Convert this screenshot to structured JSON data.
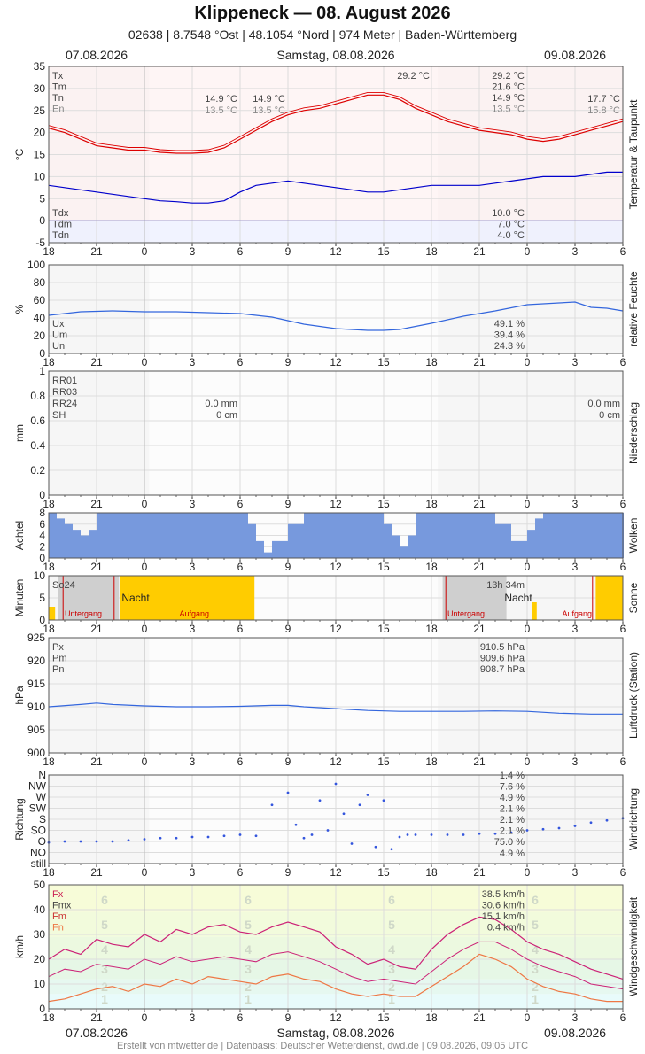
{
  "header": {
    "title": "Klippeneck  —  08. August 2026",
    "subtitle": "02638  |  8.7548 °Ost  |  48.1054 °Nord  |  974 Meter  |  Baden-Württemberg",
    "date_left": "07.08.2026",
    "date_center": "Samstag, 08.08.2026",
    "date_right": "09.08.2026"
  },
  "footer": "Erstellt von mtwetter.de | Datenbasis: Deutscher Wetterdienst, dwd.de | 09.08.2026, 09:05 UTC",
  "colors": {
    "temp": "#dd0000",
    "dew": "#0000cc",
    "humidity": "#3366dd",
    "cloud": "#7799dd",
    "sun": "#ffcc00",
    "pressure": "#3366dd",
    "gust": "#cc2277",
    "wind_mean": "#ee7744"
  },
  "chart_data": [
    {
      "id": "temperature",
      "type": "line",
      "ylabel": "°C",
      "side_label": "Temperatur & Taupunkt",
      "ylim": [
        -5,
        35
      ],
      "yticks": [
        -5,
        0,
        5,
        10,
        15,
        20,
        25,
        30,
        35
      ],
      "xlim": [
        18,
        54
      ],
      "xticks": [
        "18",
        "21",
        "0",
        "3",
        "6",
        "9",
        "12",
        "15",
        "18",
        "21",
        "0",
        "3",
        "6"
      ],
      "legend_top": [
        "Tx",
        "Tm",
        "Tn",
        "En"
      ],
      "legend_bottom": [
        "Tdx",
        "Tdm",
        "Tdn"
      ],
      "annotations": {
        "mid_tn": "14.9 °C",
        "mid_en": "13.5 °C",
        "mid2_tn": "14.9 °C",
        "mid2_en": "13.5 °C",
        "peak": "29.2 °C",
        "day_tx": "29.2 °C",
        "day_tm": "21.6 °C",
        "day_tn": "14.9 °C",
        "day_en": "13.5 °C",
        "right_tn": "17.7 °C",
        "right_en": "15.8 °C",
        "day_tdx": "10.0 °C",
        "day_tdm": "7.0 °C",
        "day_tdn": "4.0 °C"
      },
      "series": [
        {
          "key": "temp",
          "x": [
            18,
            19,
            20,
            21,
            22,
            23,
            24,
            25,
            26,
            27,
            28,
            29,
            30,
            31,
            32,
            33,
            34,
            35,
            36,
            37,
            38,
            39,
            40,
            41,
            42,
            43,
            44,
            45,
            46,
            47,
            48,
            49,
            50,
            51,
            52,
            53,
            54
          ],
          "values": [
            21.0,
            20.0,
            18.5,
            17.0,
            16.5,
            16.0,
            16.0,
            15.5,
            15.3,
            15.3,
            15.5,
            16.5,
            18.5,
            20.5,
            22.5,
            24.0,
            25.0,
            25.5,
            26.5,
            27.5,
            28.5,
            28.5,
            27.5,
            25.5,
            24.0,
            22.5,
            21.5,
            20.5,
            20.0,
            19.5,
            18.5,
            18.0,
            18.5,
            19.5,
            20.5,
            21.5,
            22.5
          ]
        },
        {
          "key": "dew",
          "x": [
            18,
            19,
            20,
            21,
            22,
            23,
            24,
            25,
            26,
            27,
            28,
            29,
            30,
            31,
            32,
            33,
            34,
            35,
            36,
            37,
            38,
            39,
            40,
            41,
            42,
            43,
            44,
            45,
            46,
            47,
            48,
            49,
            50,
            51,
            52,
            53,
            54
          ],
          "values": [
            8.0,
            7.5,
            7.0,
            6.5,
            6.0,
            5.5,
            5.0,
            4.5,
            4.3,
            4.0,
            4.0,
            4.5,
            6.5,
            8.0,
            8.5,
            9.0,
            8.5,
            8.0,
            7.5,
            7.0,
            6.5,
            6.5,
            7.0,
            7.5,
            8.0,
            8.0,
            8.0,
            8.0,
            8.5,
            9.0,
            9.5,
            10.0,
            10.0,
            10.0,
            10.5,
            11.0,
            11.0
          ]
        }
      ]
    },
    {
      "id": "humidity",
      "type": "line",
      "ylabel": "%",
      "side_label": "relative Feuchte",
      "ylim": [
        0,
        100
      ],
      "yticks": [
        0,
        20,
        40,
        60,
        80,
        100
      ],
      "legend": [
        "Ux",
        "Um",
        "Un"
      ],
      "annotations": {
        "ux": "49.1 %",
        "um": "39.4 %",
        "un": "24.3 %"
      },
      "series": [
        {
          "key": "humidity",
          "x": [
            18,
            20,
            22,
            24,
            26,
            28,
            30,
            32,
            34,
            36,
            38,
            39,
            40,
            42,
            44,
            46,
            48,
            50,
            51,
            52,
            53,
            54
          ],
          "values": [
            43,
            47,
            48,
            47,
            47,
            46,
            45,
            41,
            33,
            28,
            26,
            26,
            27,
            34,
            42,
            48,
            55,
            57,
            58,
            52,
            51,
            48
          ]
        }
      ]
    },
    {
      "id": "precipitation",
      "type": "bar",
      "ylabel": "mm",
      "side_label": "Niederschlag",
      "ylim": [
        0,
        1
      ],
      "yticks": [
        0.0,
        0.2,
        0.4,
        0.6,
        0.8,
        1.0
      ],
      "legend": [
        "RR01",
        "RR03",
        "RR24",
        "SH"
      ],
      "annotations": {
        "mid_rr24": "0.0 mm",
        "mid_sh": "0 cm",
        "right_rr24": "0.0 mm",
        "right_sh": "0 cm"
      },
      "values": []
    },
    {
      "id": "clouds",
      "type": "bar",
      "ylabel": "Achtel",
      "side_label": "Wolken",
      "ylim": [
        0,
        8
      ],
      "yticks": [
        0,
        2,
        4,
        6,
        8
      ],
      "x": [
        18,
        18.5,
        19,
        19.5,
        20,
        20.5,
        21,
        22,
        23,
        24,
        25,
        26,
        27,
        28,
        29,
        30,
        30.5,
        31,
        31.5,
        32,
        33,
        34,
        35,
        36,
        37,
        38,
        39,
        39.5,
        40,
        40.5,
        41,
        42,
        43,
        44,
        45,
        46,
        47,
        48,
        48.5,
        49,
        50,
        51,
        52,
        53,
        54
      ],
      "values": [
        8,
        7,
        6,
        5,
        4,
        5,
        8,
        8,
        8,
        8,
        8,
        8,
        8,
        8,
        8,
        8,
        6,
        3,
        1,
        3,
        6,
        8,
        8,
        8,
        8,
        8,
        6,
        4,
        2,
        4,
        8,
        8,
        8,
        8,
        8,
        6,
        3,
        5,
        7,
        8,
        8,
        8,
        8,
        8,
        8
      ]
    },
    {
      "id": "sunshine",
      "type": "bar",
      "ylabel": "Minuten",
      "side_label": "Sonne",
      "ylim": [
        0,
        10
      ],
      "yticks": [
        0,
        5,
        10
      ],
      "legend": [
        "So24"
      ],
      "annotations": {
        "night1": "Nacht",
        "night2": "Nacht",
        "sunset1": "Untergang",
        "sunrise1": "Aufgang",
        "sunset2": "Untergang",
        "sunrise2": "Aufgang",
        "duration": "13h 34m"
      },
      "sun_periods": [
        [
          18,
          18.4,
          3
        ],
        [
          22.5,
          30.9,
          10
        ],
        [
          48.3,
          48.6,
          4
        ],
        [
          52.3,
          54,
          10
        ]
      ]
    },
    {
      "id": "pressure",
      "type": "line",
      "ylabel": "hPa",
      "side_label": "Luftdruck (Station)",
      "ylim": [
        900,
        925
      ],
      "yticks": [
        900,
        905,
        910,
        915,
        920,
        925
      ],
      "legend": [
        "Px",
        "Pm",
        "Pn"
      ],
      "annotations": {
        "px": "910.5 hPa",
        "pm": "909.6 hPa",
        "pn": "908.7 hPa"
      },
      "series": [
        {
          "key": "pressure",
          "x": [
            18,
            20,
            21,
            22,
            24,
            26,
            28,
            30,
            32,
            33,
            34,
            36,
            38,
            40,
            42,
            44,
            46,
            48,
            50,
            52,
            54
          ],
          "values": [
            910.0,
            910.5,
            910.8,
            910.5,
            910.2,
            910.0,
            910.0,
            910.1,
            910.3,
            910.3,
            910.0,
            909.6,
            909.2,
            909.0,
            909.0,
            909.0,
            909.1,
            909.0,
            908.6,
            908.4,
            908.4
          ]
        }
      ]
    },
    {
      "id": "wind_direction",
      "type": "scatter",
      "ylabel": "Richtung",
      "side_label": "Windrichtung",
      "categories": [
        "still",
        "NO",
        "O",
        "SO",
        "S",
        "SW",
        "W",
        "NW",
        "N"
      ],
      "annotations": {
        "n": "1.4 %",
        "nw": "7.6 %",
        "w": "4.9 %",
        "sw": "2.1 %",
        "s": "2.1 %",
        "so": "2.1 %",
        "o": "75.0 %",
        "still": "4.9 %"
      },
      "x": [
        18,
        19,
        20,
        21,
        22,
        23,
        24,
        25,
        26,
        27,
        28,
        29,
        30,
        31,
        32,
        33,
        33.5,
        34,
        34.5,
        35,
        35.5,
        36,
        36.5,
        37,
        37.5,
        38,
        38.5,
        39,
        39.5,
        40,
        40.5,
        41,
        42,
        43,
        44,
        45,
        46,
        47,
        48,
        49,
        50,
        51,
        52,
        53,
        54
      ],
      "values": [
        1.9,
        2.0,
        2.0,
        2.0,
        2.0,
        2.1,
        2.2,
        2.3,
        2.3,
        2.4,
        2.4,
        2.5,
        2.6,
        2.5,
        5.3,
        6.4,
        3.5,
        2.3,
        2.6,
        5.7,
        3.0,
        7.2,
        4.5,
        1.8,
        5.3,
        6.2,
        1.5,
        5.7,
        1.3,
        2.4,
        2.6,
        2.6,
        2.6,
        2.6,
        2.6,
        2.7,
        2.7,
        2.8,
        3.0,
        3.1,
        3.2,
        3.4,
        3.7,
        3.9,
        4.1
      ]
    },
    {
      "id": "wind_speed",
      "type": "line",
      "ylabel": "km/h",
      "side_label": "Windgeschwindigkeit",
      "ylim": [
        0,
        50
      ],
      "yticks": [
        0,
        10,
        20,
        30,
        40,
        50
      ],
      "legend": [
        "Fx",
        "Fmx",
        "Fm",
        "Fn"
      ],
      "annotations": {
        "fx": "38.5 km/h",
        "fmx": "30.6 km/h",
        "fm": "15.1 km/h",
        "fn": "0.4 km/h"
      },
      "beaufort_labels": [
        "1",
        "2",
        "3",
        "4",
        "5",
        "6"
      ],
      "series": [
        {
          "key": "gust",
          "x": [
            18,
            19,
            20,
            21,
            22,
            23,
            24,
            25,
            26,
            27,
            28,
            29,
            30,
            31,
            32,
            33,
            34,
            35,
            36,
            37,
            38,
            39,
            40,
            41,
            42,
            43,
            44,
            45,
            46,
            47,
            48,
            49,
            50,
            51,
            52,
            53,
            54
          ],
          "values": [
            20,
            24,
            22,
            28,
            26,
            25,
            30,
            27,
            32,
            30,
            33,
            34,
            31,
            30,
            33,
            35,
            33,
            31,
            25,
            22,
            18,
            20,
            17,
            16,
            24,
            30,
            34,
            37,
            36,
            32,
            27,
            24,
            22,
            19,
            16,
            14,
            12
          ]
        },
        {
          "key": "gust_mean",
          "x": [
            18,
            19,
            20,
            21,
            22,
            23,
            24,
            25,
            26,
            27,
            28,
            29,
            30,
            31,
            32,
            33,
            34,
            35,
            36,
            37,
            38,
            39,
            40,
            41,
            42,
            43,
            44,
            45,
            46,
            47,
            48,
            49,
            50,
            51,
            52,
            53,
            54
          ],
          "values": [
            13,
            16,
            15,
            18,
            17,
            16,
            20,
            18,
            21,
            19,
            20,
            21,
            20,
            19,
            22,
            23,
            21,
            19,
            16,
            13,
            11,
            12,
            11,
            10,
            15,
            20,
            24,
            27,
            27,
            24,
            20,
            17,
            15,
            13,
            10,
            9,
            8
          ]
        },
        {
          "key": "wind_mean",
          "x": [
            18,
            19,
            20,
            21,
            22,
            23,
            24,
            25,
            26,
            27,
            28,
            29,
            30,
            31,
            32,
            33,
            34,
            35,
            36,
            37,
            38,
            39,
            40,
            41,
            42,
            43,
            44,
            45,
            46,
            47,
            48,
            49,
            50,
            51,
            52,
            53,
            54
          ],
          "values": [
            3,
            4,
            6,
            8,
            9,
            7,
            10,
            9,
            12,
            10,
            13,
            12,
            11,
            10,
            13,
            14,
            12,
            11,
            8,
            6,
            5,
            6,
            5,
            5,
            9,
            13,
            17,
            22,
            20,
            17,
            12,
            9,
            7,
            6,
            4,
            3,
            3
          ]
        }
      ]
    }
  ]
}
